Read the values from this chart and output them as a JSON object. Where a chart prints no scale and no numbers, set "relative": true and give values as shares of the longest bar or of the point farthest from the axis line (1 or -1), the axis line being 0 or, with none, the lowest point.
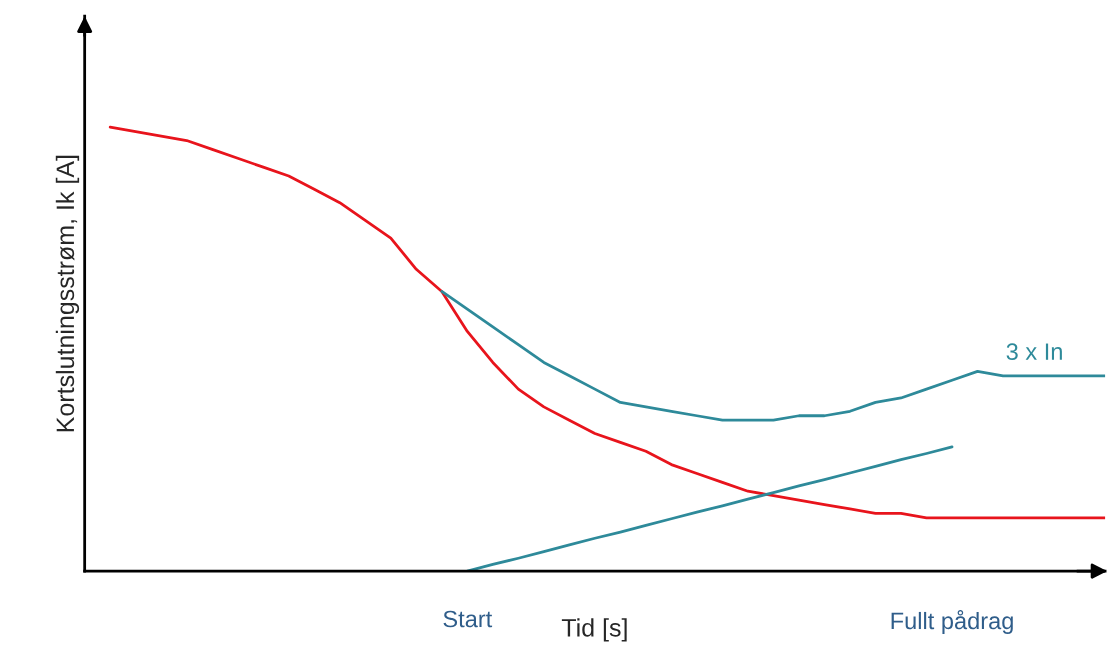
{
  "chart_data": {
    "type": "line",
    "relative": true,
    "xlabel": "Tid [s]",
    "ylabel": "Kortslutningsstrøm, Ik [A]",
    "categories": [
      null,
      null,
      null,
      null,
      null,
      null,
      null,
      null,
      null,
      null,
      null,
      null,
      null,
      null,
      null,
      "Start",
      null,
      null,
      null,
      null,
      null,
      null,
      null,
      null,
      null,
      null,
      null,
      null,
      null,
      null,
      null,
      null,
      null,
      null,
      "Fullt pådrag",
      null,
      null,
      null,
      null,
      null,
      null
    ],
    "grid": false,
    "legend": false,
    "marker": "none",
    "line_style": "solid",
    "series": [
      {
        "color": "#e8141c",
        "values": [
          null,
          1.0,
          0.99,
          0.98,
          0.97,
          0.95,
          0.93,
          0.91,
          0.89,
          0.86,
          0.83,
          0.79,
          0.75,
          0.68,
          0.63,
          0.54,
          0.47,
          0.41,
          0.37,
          0.34,
          0.31,
          0.29,
          0.27,
          0.24,
          0.22,
          0.2,
          0.18,
          0.17,
          0.16,
          0.15,
          0.14,
          0.13,
          0.13,
          0.12,
          0.12,
          0.12,
          0.12,
          0.12,
          0.12,
          0.12,
          0.12
        ]
      },
      {
        "name": "3 x In",
        "color": "#2e8a9a",
        "values": [
          null,
          null,
          null,
          null,
          null,
          null,
          null,
          null,
          null,
          null,
          null,
          null,
          null,
          null,
          0.63,
          0.59,
          0.55,
          0.51,
          0.47,
          0.44,
          0.41,
          0.38,
          0.37,
          0.36,
          0.35,
          0.34,
          0.34,
          0.34,
          0.35,
          0.35,
          0.36,
          0.38,
          0.39,
          0.41,
          0.43,
          0.45,
          0.44,
          0.44,
          0.44,
          0.44,
          0.44
        ]
      },
      {
        "color": "#2e8a9a",
        "values": [
          null,
          null,
          null,
          null,
          null,
          null,
          null,
          null,
          null,
          null,
          null,
          null,
          null,
          null,
          null,
          0,
          0.015,
          0.029,
          0.044,
          0.059,
          0.074,
          0.088,
          0.103,
          0.118,
          0.133,
          0.147,
          0.162,
          0.177,
          0.192,
          0.206,
          0.221,
          0.236,
          0.251,
          0.265,
          0.28,
          null,
          null,
          null,
          null,
          null,
          null
        ]
      }
    ]
  }
}
